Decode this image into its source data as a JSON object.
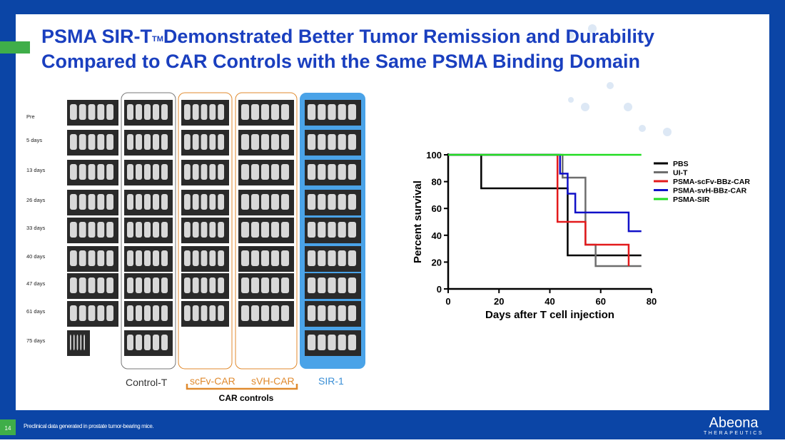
{
  "slide": {
    "title": {
      "part1": "PSMA SIR-T",
      "trademark": "TM",
      "part2": "Demonstrated Better Tumor Remission and Durability",
      "line2": "Compared to CAR Controls with the Same PSMA Binding Domain"
    },
    "row_labels": [
      "Pre",
      "5 days",
      "13  days",
      "26 days",
      "33 days",
      "40  days",
      "47 days",
      "61 days",
      "75 days"
    ],
    "group_labels": {
      "control": "Control-T",
      "scfv": "scFv-CAR",
      "svh": "sVH-CAR",
      "sir": "SIR-1",
      "car_controls": "CAR controls"
    },
    "footnote": "Preclinical data generated in prostate tumor-bearing mice.",
    "page_number": "14",
    "logo": {
      "name": "Abeona",
      "sub": "THERAPEUTICS"
    }
  },
  "chart_data": {
    "type": "line",
    "step": true,
    "xlabel": "Days after T cell injection",
    "ylabel": "Percent survival",
    "xlim": [
      0,
      80
    ],
    "xticks": [
      0,
      20,
      40,
      60,
      80
    ],
    "ylim": [
      0,
      100
    ],
    "yticks": [
      0,
      20,
      40,
      60,
      80,
      100
    ],
    "series": [
      {
        "name": "PBS",
        "color": "#000000",
        "x": [
          0,
          13,
          13,
          47,
          47,
          76
        ],
        "values": [
          100,
          100,
          75,
          75,
          25,
          25
        ]
      },
      {
        "name": "UI-T",
        "color": "#6e6e6e",
        "x": [
          0,
          45,
          45,
          54,
          54,
          58,
          58,
          76
        ],
        "values": [
          100,
          100,
          83,
          83,
          33,
          33,
          17,
          17
        ]
      },
      {
        "name": "PSMA-scFv-BBz-CAR",
        "color": "#e31a1c",
        "x": [
          0,
          43,
          43,
          54,
          54,
          71,
          71
        ],
        "values": [
          100,
          100,
          50,
          50,
          33,
          33,
          17
        ]
      },
      {
        "name": "PSMA-svH-BBz-CAR",
        "color": "#1010c8",
        "x": [
          0,
          44,
          44,
          47,
          47,
          50,
          50,
          71,
          71,
          76
        ],
        "values": [
          100,
          100,
          86,
          86,
          71,
          71,
          57,
          57,
          43,
          43
        ]
      },
      {
        "name": "PSMA-SIR",
        "color": "#22dd22",
        "x": [
          0,
          76
        ],
        "values": [
          100,
          100
        ]
      }
    ]
  }
}
